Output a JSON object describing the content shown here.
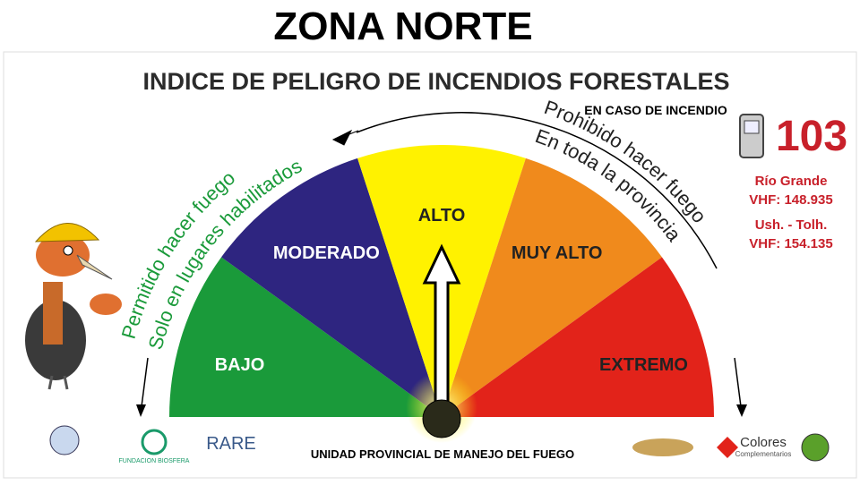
{
  "header": {
    "title": "ZONA NORTE",
    "subtitle": "INDICE DE PELIGRO DE INCENDIOS FORESTALES"
  },
  "gauge": {
    "levels": [
      "BAJO",
      "MODERADO",
      "ALTO",
      "MUY ALTO",
      "EXTREMO"
    ]
  },
  "left_note": [
    "Permitido hacer fuego",
    "Solo en lugares habilitados"
  ],
  "right_note": [
    "Prohibido hacer fuego",
    "En toda la provincia"
  ],
  "emergency": {
    "heading": "EN CASO DE INCENDIO",
    "phone": "103",
    "lines": [
      "Río Grande",
      "VHF: 148.935",
      "Ush. - Tolh.",
      "VHF: 154.135"
    ]
  },
  "footer": {
    "text": "UNIDAD PROVINCIAL DE MANEJO DEL FUEGO",
    "logos": [
      "FUNDACION BIOSFERA",
      "RARE",
      "Colores",
      "Complementarios"
    ]
  }
}
